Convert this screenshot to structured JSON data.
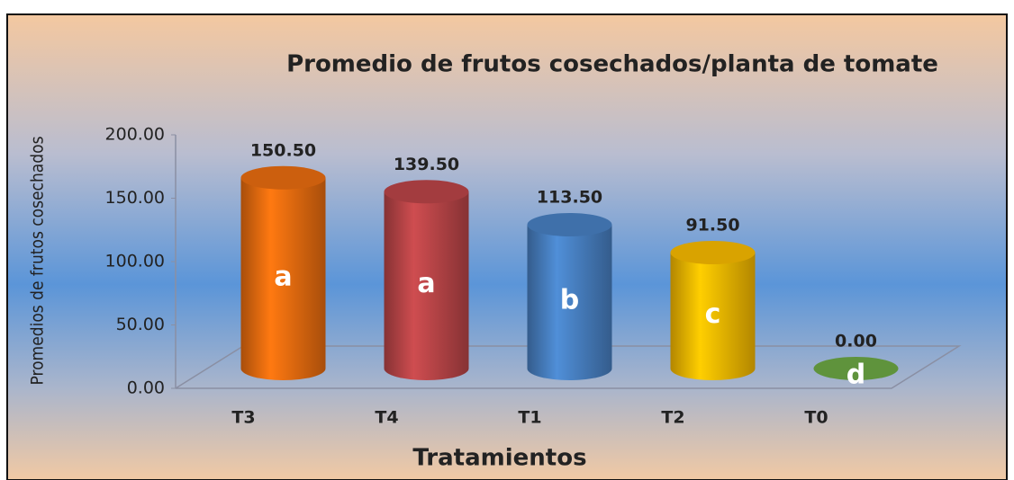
{
  "chart_data": {
    "type": "bar",
    "title": "Promedio de frutos cosechados/planta de tomate",
    "x_label": "Tratamientos",
    "y_label": "Promedios de frutos cosechados",
    "categories": [
      "T3",
      "T4",
      "T1",
      "T2",
      "T0"
    ],
    "values": [
      150.5,
      139.5,
      113.5,
      91.5,
      0
    ],
    "value_labels": [
      "150.50",
      "139.50",
      "113.50",
      "91.50",
      "0.00"
    ],
    "group_letters": [
      "a",
      "a",
      "b",
      "c",
      "d"
    ],
    "colors": [
      "#f07010",
      "#c0474a",
      "#4a84c8",
      "#ffc000",
      "#70ad47"
    ],
    "ylim": [
      0,
      200
    ],
    "yticks": [
      {
        "value": 0,
        "label": "0.00"
      },
      {
        "value": 50,
        "label": "50.00"
      },
      {
        "value": 100,
        "label": "100.00"
      },
      {
        "value": 150,
        "label": "150.00"
      },
      {
        "value": 200,
        "label": "200.00"
      }
    ],
    "grid": false
  }
}
